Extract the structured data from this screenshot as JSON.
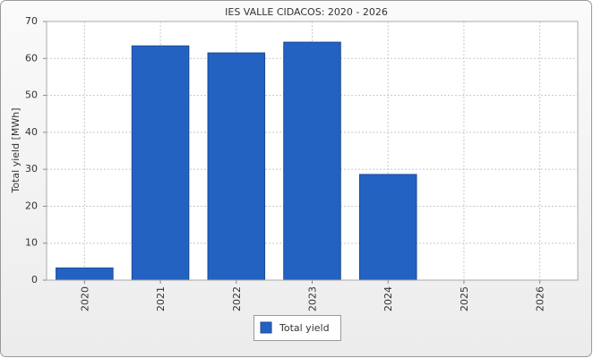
{
  "chart_data": {
    "type": "bar",
    "title": "IES VALLE CIDACOS: 2020 - 2026",
    "y_label": "Total yield [MWh]",
    "categories": [
      "2020",
      "2021",
      "2022",
      "2023",
      "2024",
      "2025",
      "2026"
    ],
    "series": [
      {
        "name": "Total yield",
        "color": "#2462c2",
        "values": [
          3.3,
          63.4,
          61.5,
          64.4,
          28.6,
          null,
          null
        ]
      }
    ],
    "ylim": [
      0,
      70
    ],
    "yticks": [
      0,
      10,
      20,
      30,
      40,
      50,
      60,
      70
    ],
    "grid": true
  }
}
